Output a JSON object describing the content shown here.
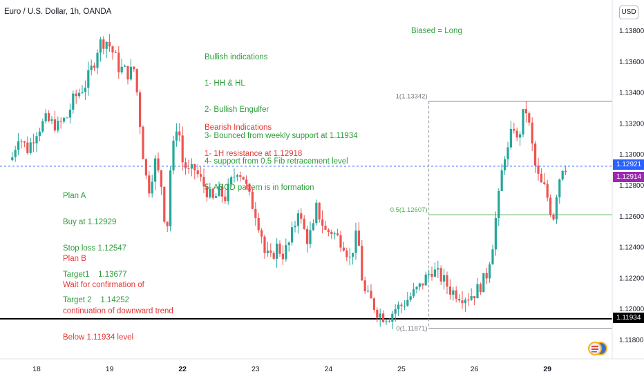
{
  "header": {
    "symbol_title": "Euro / U.S. Dollar, 1h, OANDA",
    "currency_button": "USD"
  },
  "annotations": {
    "bias": "Biased = Long",
    "bullish": [
      "Bullish indications",
      "1- HH & HL",
      "2- Bullish Engulfer",
      "3- Bounced from weekly support at 1.11934",
      "4- support from 0.5 Fib retracement level",
      "5- ABCD pattern is in formation"
    ],
    "bearish": [
      "Bearish Indications",
      "1- 1H resistance at 1.12918"
    ],
    "plan_a": [
      "Plan A",
      "Buy at 1.12929",
      "Stop loss 1.12547",
      "Target1    1.13677",
      "Target 2    1.14252"
    ],
    "plan_b": [
      "Plan B",
      "Wait for confirmation of",
      "continuation of downward trend",
      "Below 1.11934 level"
    ]
  },
  "price_labels": {
    "last": "1.12921",
    "mark": "1.12914",
    "support": "1.11934"
  },
  "fib_levels": {
    "top": "1(1.13342)",
    "mid": "0.5(1.12607)",
    "bottom": "0(1.11871)"
  },
  "colors": {
    "up": "#26a69a",
    "down": "#ef5350",
    "annotation_green": "#2e9e3a",
    "annotation_red": "#e53935",
    "last_price_label": "#2962ff",
    "mark_price_label": "#9c27b0",
    "support_line": "#000000",
    "fib_line": "#4caf50"
  },
  "chart_data": {
    "type": "candlestick",
    "title": "Euro / U.S. Dollar, 1h, OANDA",
    "y_axis": {
      "ticks": [
        1.118,
        1.12,
        1.122,
        1.124,
        1.126,
        1.128,
        1.13,
        1.132,
        1.134,
        1.136,
        1.138
      ],
      "range": [
        1.1172,
        1.1393
      ],
      "tick_labels": [
        "1.11800",
        "1.12000",
        "1.12200",
        "1.12400",
        "1.12600",
        "1.12800",
        "1.13000",
        "1.13200",
        "1.13400",
        "1.13600",
        "1.13800"
      ]
    },
    "x_axis": {
      "ticks": [
        {
          "label": "18",
          "bar": 0
        },
        {
          "label": "19",
          "bar": 24
        },
        {
          "label": "22",
          "bar": 48
        },
        {
          "label": "23",
          "bar": 72
        },
        {
          "label": "24",
          "bar": 96
        },
        {
          "label": "25",
          "bar": 120
        },
        {
          "label": "26",
          "bar": 144
        },
        {
          "label": "29",
          "bar": 168
        }
      ],
      "bold_labels": [
        "22",
        "29"
      ]
    },
    "horizontal_lines": {
      "last_price": 1.12921,
      "support": 1.11934,
      "fib_0_5": 1.12607,
      "fib_1": 1.13342,
      "fib_0": 1.11871
    },
    "fib_start_bar": 129,
    "close_path": [
      [
        -8,
        1.1298
      ],
      [
        -6,
        1.1312
      ],
      [
        -3,
        1.1303
      ],
      [
        0,
        1.1315
      ],
      [
        3,
        1.1322
      ],
      [
        7,
        1.1318
      ],
      [
        10,
        1.1324
      ],
      [
        12,
        1.1335
      ],
      [
        14,
        1.134
      ],
      [
        16,
        1.1345
      ],
      [
        18,
        1.1355
      ],
      [
        19,
        1.136
      ],
      [
        20,
        1.1368
      ],
      [
        21,
        1.1372
      ],
      [
        23,
        1.1373
      ],
      [
        24,
        1.137
      ],
      [
        26,
        1.1362
      ],
      [
        27,
        1.1356
      ],
      [
        29,
        1.1354
      ],
      [
        30,
        1.1352
      ],
      [
        32,
        1.1355
      ],
      [
        33,
        1.134
      ],
      [
        34,
        1.132
      ],
      [
        35,
        1.13
      ],
      [
        36,
        1.1285
      ],
      [
        37,
        1.1278
      ],
      [
        39,
        1.1295
      ],
      [
        41,
        1.128
      ],
      [
        42,
        1.126
      ],
      [
        43,
        1.1255
      ],
      [
        44,
        1.129
      ],
      [
        45,
        1.1305
      ],
      [
        46,
        1.1318
      ],
      [
        47,
        1.1312
      ],
      [
        48,
        1.1295
      ],
      [
        50,
        1.1288
      ],
      [
        52,
        1.129
      ],
      [
        54,
        1.1283
      ],
      [
        56,
        1.1276
      ],
      [
        58,
        1.127
      ],
      [
        60,
        1.1275
      ],
      [
        62,
        1.1272
      ],
      [
        64,
        1.1282
      ],
      [
        66,
        1.129
      ],
      [
        68,
        1.1285
      ],
      [
        70,
        1.1272
      ],
      [
        72,
        1.1262
      ],
      [
        74,
        1.1248
      ],
      [
        75,
        1.1236
      ],
      [
        77,
        1.1232
      ],
      [
        79,
        1.124
      ],
      [
        81,
        1.1235
      ],
      [
        83,
        1.1242
      ],
      [
        85,
        1.1255
      ],
      [
        86,
        1.1265
      ],
      [
        87,
        1.1256
      ],
      [
        89,
        1.1245
      ],
      [
        91,
        1.1252
      ],
      [
        92,
        1.1265
      ],
      [
        93,
        1.126
      ],
      [
        95,
        1.125
      ],
      [
        97,
        1.125
      ],
      [
        99,
        1.1246
      ],
      [
        101,
        1.1242
      ],
      [
        103,
        1.1232
      ],
      [
        105,
        1.1246
      ],
      [
        106,
        1.124
      ],
      [
        107,
        1.122
      ],
      [
        108,
        1.121
      ],
      [
        110,
        1.1205
      ],
      [
        112,
        1.1198
      ],
      [
        114,
        1.1195
      ],
      [
        116,
        1.1195
      ],
      [
        118,
        1.12
      ],
      [
        120,
        1.1202
      ],
      [
        122,
        1.1206
      ],
      [
        124,
        1.121
      ],
      [
        126,
        1.1214
      ],
      [
        128,
        1.122
      ],
      [
        130,
        1.1225
      ],
      [
        132,
        1.1222
      ],
      [
        134,
        1.1218
      ],
      [
        136,
        1.1212
      ],
      [
        138,
        1.121
      ],
      [
        140,
        1.1208
      ],
      [
        142,
        1.1208
      ],
      [
        144,
        1.121
      ],
      [
        146,
        1.1215
      ],
      [
        148,
        1.1222
      ],
      [
        149,
        1.1232
      ],
      [
        150,
        1.1242
      ],
      [
        151,
        1.1258
      ],
      [
        152,
        1.1272
      ],
      [
        153,
        1.1288
      ],
      [
        154,
        1.13
      ],
      [
        155,
        1.1302
      ],
      [
        156,
        1.1312
      ],
      [
        157,
        1.1318
      ],
      [
        158,
        1.1308
      ],
      [
        159,
        1.1315
      ],
      [
        160,
        1.1325
      ],
      [
        161,
        1.1328
      ],
      [
        162,
        1.1318
      ],
      [
        163,
        1.1305
      ],
      [
        164,
        1.1292
      ],
      [
        165,
        1.1285
      ],
      [
        166,
        1.128
      ],
      [
        167,
        1.1278
      ],
      [
        168,
        1.1272
      ],
      [
        169,
        1.1264
      ],
      [
        170,
        1.126
      ],
      [
        171,
        1.1275
      ],
      [
        172,
        1.1285
      ],
      [
        173,
        1.1292
      ],
      [
        174,
        1.1292
      ]
    ]
  }
}
